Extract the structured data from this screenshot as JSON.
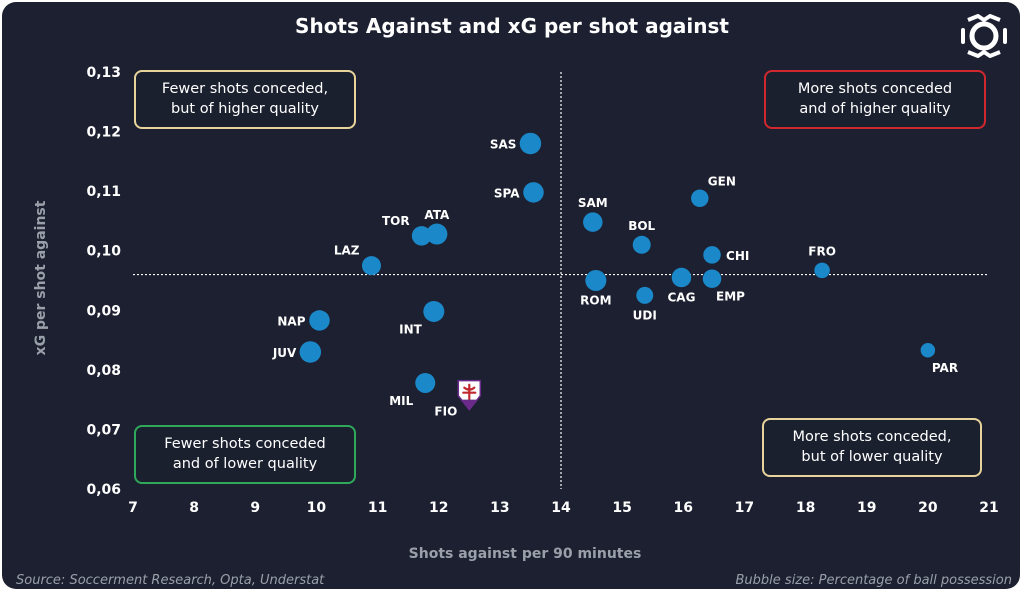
{
  "colors": {
    "background": "#1c2030",
    "bubble": "#1a88c9",
    "box_yellow": "#e8d49a",
    "box_red": "#d0282e",
    "box_green": "#2fa85a"
  },
  "header": {
    "title": "Shots Against and xG per shot against",
    "logo_icon": "league-logo-icon"
  },
  "quadrants": {
    "top_left": "Fewer shots conceded,\nbut of higher quality",
    "top_right": "More shots conceded\nand of higher quality",
    "bottom_left": "Fewer shots conceded\nand of lower quality",
    "bottom_right": "More shots conceded,\nbut of lower quality"
  },
  "footer": {
    "source": "Source: Soccerment Research, Opta, Understat",
    "note": "Bubble size: Percentage of ball possession"
  },
  "chart_data": {
    "type": "scatter",
    "title": "Shots Against and xG per shot against",
    "xlabel": "Shots against per 90 minutes",
    "ylabel": "xG per shot against",
    "xlim": [
      7,
      21
    ],
    "ylim": [
      0.06,
      0.13
    ],
    "x_ticks": [
      "7",
      "8",
      "9",
      "10",
      "11",
      "12",
      "13",
      "14",
      "15",
      "16",
      "17",
      "18",
      "19",
      "20",
      "21"
    ],
    "y_ticks": [
      "0,06",
      "0,07",
      "0,08",
      "0,09",
      "0,10",
      "0,11",
      "0,12",
      "0,13"
    ],
    "reference_lines": {
      "x": 14,
      "y": 0.096
    },
    "grid": false,
    "bubble_size": "Percentage of ball possession",
    "points": [
      {
        "team": "SAS",
        "x": 13.5,
        "y": 0.118,
        "size": 59,
        "label_pos": "left"
      },
      {
        "team": "SPA",
        "x": 13.55,
        "y": 0.1098,
        "size": 57,
        "label_pos": "left"
      },
      {
        "team": "SAM",
        "x": 14.52,
        "y": 0.1048,
        "size": 55,
        "label_pos": "above"
      },
      {
        "team": "BOL",
        "x": 15.32,
        "y": 0.101,
        "size": 52,
        "label_pos": "above"
      },
      {
        "team": "GEN",
        "x": 16.27,
        "y": 0.1088,
        "size": 51,
        "label_pos": "above-right"
      },
      {
        "team": "CHI",
        "x": 16.47,
        "y": 0.0993,
        "size": 51,
        "label_pos": "right"
      },
      {
        "team": "CAG",
        "x": 15.97,
        "y": 0.0955,
        "size": 55,
        "label_pos": "below"
      },
      {
        "team": "EMP",
        "x": 16.47,
        "y": 0.0953,
        "size": 53,
        "label_pos": "below-right"
      },
      {
        "team": "ROM",
        "x": 14.57,
        "y": 0.095,
        "size": 58,
        "label_pos": "below"
      },
      {
        "team": "UDI",
        "x": 15.37,
        "y": 0.0925,
        "size": 50,
        "label_pos": "below"
      },
      {
        "team": "FRO",
        "x": 18.27,
        "y": 0.0967,
        "size": 47,
        "label_pos": "above"
      },
      {
        "team": "PAR",
        "x": 20.0,
        "y": 0.0833,
        "size": 45,
        "label_pos": "below-right"
      },
      {
        "team": "TOR",
        "x": 11.72,
        "y": 0.1025,
        "size": 55,
        "label_pos": "above-left"
      },
      {
        "team": "ATA",
        "x": 11.97,
        "y": 0.1028,
        "size": 58,
        "label_pos": "above"
      },
      {
        "team": "LAZ",
        "x": 10.9,
        "y": 0.0975,
        "size": 54,
        "label_pos": "above-left"
      },
      {
        "team": "INT",
        "x": 11.92,
        "y": 0.0898,
        "size": 58,
        "label_pos": "below-left"
      },
      {
        "team": "NAP",
        "x": 10.05,
        "y": 0.0883,
        "size": 57,
        "label_pos": "left"
      },
      {
        "team": "JUV",
        "x": 9.9,
        "y": 0.083,
        "size": 59,
        "label_pos": "left"
      },
      {
        "team": "MIL",
        "x": 11.78,
        "y": 0.0778,
        "size": 56,
        "label_pos": "below-left"
      },
      {
        "team": "FIO",
        "x": 12.5,
        "y": 0.076,
        "size": 0,
        "label_pos": "below-left",
        "marker": "fiorentina-crest-icon"
      }
    ]
  }
}
